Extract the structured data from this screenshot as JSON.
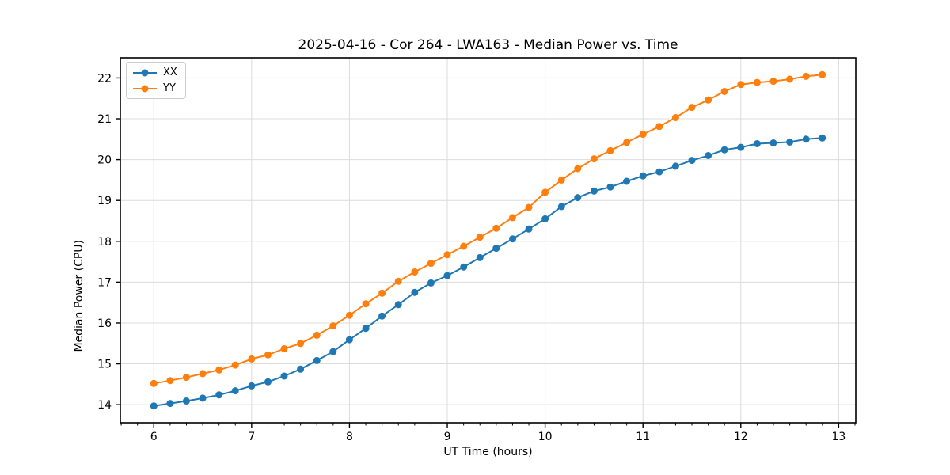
{
  "chart_data": {
    "type": "line",
    "title": "2025-04-16 - Cor 264 - LWA163 - Median Power vs. Time",
    "xlabel": "UT Time (hours)",
    "ylabel": "Median Power (CPU)",
    "xlim": [
      5.658,
      13.175
    ],
    "ylim": [
      13.557,
      22.493
    ],
    "x_ticks": [
      6,
      7,
      8,
      9,
      10,
      11,
      12,
      13
    ],
    "y_ticks": [
      14,
      15,
      16,
      17,
      18,
      19,
      20,
      21,
      22
    ],
    "x_minor_tick_step": 0.16667,
    "grid": true,
    "legend_position": "upper left",
    "marker": "circle",
    "x": [
      6.0,
      6.167,
      6.333,
      6.5,
      6.667,
      6.833,
      7.0,
      7.167,
      7.333,
      7.5,
      7.667,
      7.833,
      8.0,
      8.167,
      8.333,
      8.5,
      8.667,
      8.833,
      9.0,
      9.167,
      9.333,
      9.5,
      9.667,
      9.833,
      10.0,
      10.167,
      10.333,
      10.5,
      10.667,
      10.833,
      11.0,
      11.167,
      11.333,
      11.5,
      11.667,
      11.833,
      12.0,
      12.167,
      12.333,
      12.5,
      12.667,
      12.833
    ],
    "series": [
      {
        "name": "XX",
        "color": "#1f77b4",
        "values": [
          13.97,
          14.03,
          14.09,
          14.16,
          14.24,
          14.34,
          14.46,
          14.56,
          14.7,
          14.87,
          15.08,
          15.3,
          15.59,
          15.87,
          16.17,
          16.45,
          16.75,
          16.98,
          17.16,
          17.37,
          17.6,
          17.83,
          18.06,
          18.3,
          18.55,
          18.85,
          19.07,
          19.23,
          19.33,
          19.47,
          19.6,
          19.7,
          19.84,
          19.98,
          20.1,
          20.24,
          20.3,
          20.39,
          20.41,
          20.43,
          20.5,
          20.53
        ]
      },
      {
        "name": "YY",
        "color": "#ff7f0e",
        "values": [
          14.52,
          14.59,
          14.67,
          14.76,
          14.85,
          14.97,
          15.12,
          15.22,
          15.37,
          15.5,
          15.7,
          15.93,
          16.19,
          16.47,
          16.73,
          17.02,
          17.25,
          17.46,
          17.67,
          17.88,
          18.1,
          18.32,
          18.58,
          18.83,
          19.2,
          19.5,
          19.78,
          20.02,
          20.22,
          20.42,
          20.62,
          20.81,
          21.03,
          21.28,
          21.46,
          21.67,
          21.84,
          21.89,
          21.92,
          21.97,
          22.04,
          22.08
        ]
      }
    ]
  },
  "colors": {
    "grid": "#dcdcdc",
    "spine": "#000000",
    "tick": "#000000",
    "text": "#000000",
    "background": "#ffffff"
  }
}
